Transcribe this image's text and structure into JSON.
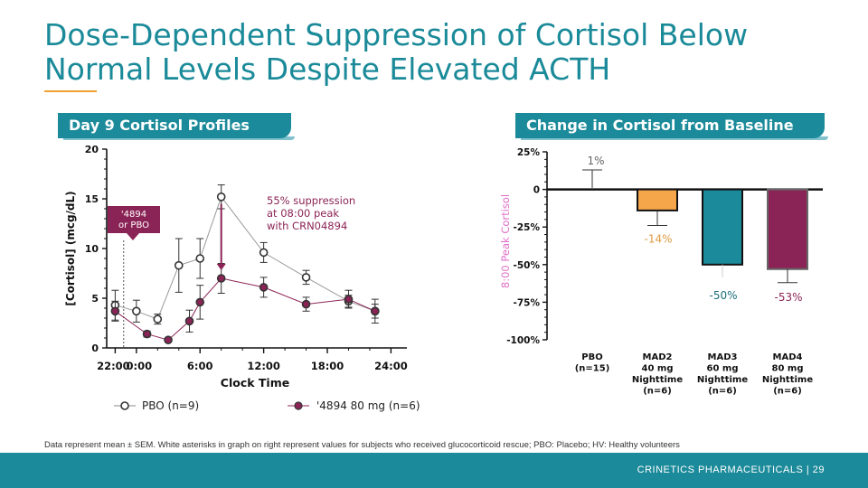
{
  "slide": {
    "title": "Dose-Dependent Suppression of Cortisol Below Normal Levels Despite Elevated ACTH",
    "footnote": "Data represent mean ± SEM. White asterisks in graph on right represent values for subjects who received glucocorticoid rescue;  PBO: Placebo; HV: Healthy volunteers",
    "footer": "CRINETICS PHARMACEUTICALS  |  29"
  },
  "colors": {
    "teal": "#1b8a9a",
    "magenta": "#8b2456",
    "orange": "#f5a54a",
    "gray": "#8a8a8a"
  },
  "chart_data": [
    {
      "type": "line",
      "panel_title": "Day 9 Cortisol Profiles",
      "xlabel": "Clock Time",
      "ylabel": "[Cortisol] (mcg/dL)",
      "ylim": [
        0,
        20
      ],
      "yticks": [
        "0",
        "5",
        "10",
        "15",
        "20"
      ],
      "xticks": [
        {
          "label": "22:00",
          "x": -2
        },
        {
          "label": "0:00",
          "x": 0
        },
        {
          "label": "6:00",
          "x": 6
        },
        {
          "label": "12:00",
          "x": 12
        },
        {
          "label": "18:00",
          "x": 18
        },
        {
          "label": "24:00",
          "x": 24
        }
      ],
      "xlim": [
        -2.8,
        25.5
      ],
      "dose_marker": {
        "x": -1.2,
        "label_line1": "'4894",
        "label_line2": "or PBO"
      },
      "annotation": {
        "line1": "55% suppression",
        "line2": "at 08:00 peak",
        "line3": "with CRN04894",
        "x": 8
      },
      "series": [
        {
          "name": "PBO (n=9)",
          "x": [
            -2,
            0,
            2,
            4,
            6,
            8,
            12,
            16,
            20,
            22.5
          ],
          "y": [
            4.3,
            3.7,
            2.9,
            8.3,
            9.0,
            15.2,
            9.6,
            7.1,
            4.7,
            3.7
          ],
          "err": [
            1.5,
            1.1,
            0.5,
            2.7,
            2.0,
            1.2,
            1.0,
            0.7,
            0.6,
            0.7
          ]
        },
        {
          "name": "'4894 80 mg (n=6)",
          "x": [
            -2,
            1,
            3,
            5,
            6,
            8,
            12,
            16,
            20,
            22.5
          ],
          "y": [
            3.7,
            1.4,
            0.8,
            2.7,
            4.6,
            7.0,
            6.1,
            4.4,
            4.9,
            3.7
          ],
          "err": [
            1.0,
            0.3,
            0.2,
            1.1,
            1.7,
            1.5,
            1.0,
            0.7,
            0.9,
            1.2
          ]
        }
      ]
    },
    {
      "type": "bar",
      "panel_title": "Change in Cortisol from Baseline",
      "ylabel": "8:00 Peak Cortisol",
      "ylim": [
        -100,
        25
      ],
      "yticks": [
        "25%",
        "0",
        "-25%",
        "-50%",
        "-75%",
        "-100%"
      ],
      "categories": [
        {
          "line1": "PBO",
          "line2": "(n=15)",
          "line3": "",
          "line4": ""
        },
        {
          "line1": "MAD2",
          "line2": "40 mg",
          "line3": "Nighttime",
          "line4": "(n=6)"
        },
        {
          "line1": "MAD3",
          "line2": "60 mg",
          "line3": "Nighttime",
          "line4": "(n=6)"
        },
        {
          "line1": "MAD4",
          "line2": "80 mg",
          "line3": "Nighttime",
          "line4": "(n=6)"
        }
      ],
      "values": [
        1,
        -14,
        -50,
        -53
      ],
      "err": [
        12,
        10,
        0,
        9
      ],
      "value_labels": [
        "1%",
        "-14%",
        "-50%",
        "-53%"
      ]
    }
  ]
}
